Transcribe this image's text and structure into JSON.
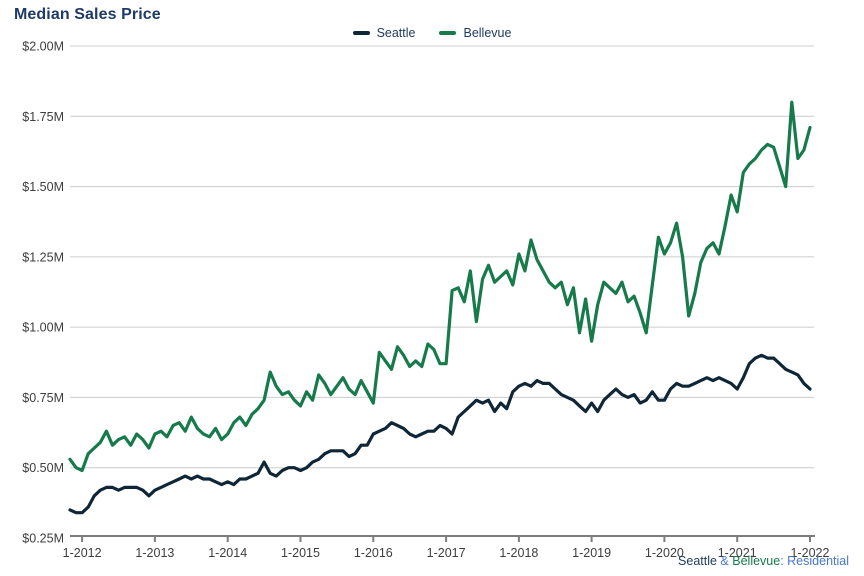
{
  "title": "Median Sales Price",
  "footer": {
    "parts": [
      {
        "text": "Seattle",
        "color": "#1e3a5f"
      },
      {
        "text": " & ",
        "color": "#4777c8"
      },
      {
        "text": "Bellevue",
        "color": "#177a4b"
      },
      {
        "text": ": ",
        "color": "#4777c8"
      },
      {
        "text": "Residential",
        "color": "#4777c8"
      }
    ]
  },
  "chart_data": {
    "type": "line",
    "title": "Median Sales Price",
    "unit": "$M",
    "x_interval": "monthly",
    "x_start": "11-2011",
    "x_end": "1-2022",
    "grid": "horizontal",
    "legend_position": "top-center",
    "ylim": [
      0.25,
      2.0
    ],
    "y_ticks": [
      {
        "label": "$2.00M",
        "value": 2.0
      },
      {
        "label": "$1.75M",
        "value": 1.75
      },
      {
        "label": "$1.50M",
        "value": 1.5
      },
      {
        "label": "$1.25M",
        "value": 1.25
      },
      {
        "label": "$1.00M",
        "value": 1.0
      },
      {
        "label": "$0.75M",
        "value": 0.75
      },
      {
        "label": "$0.50M",
        "value": 0.5
      },
      {
        "label": "$0.25M",
        "value": 0.25
      }
    ],
    "x_ticks": [
      {
        "label": "1-2012",
        "index": 2
      },
      {
        "label": "1-2013",
        "index": 14
      },
      {
        "label": "1-2014",
        "index": 26
      },
      {
        "label": "1-2015",
        "index": 38
      },
      {
        "label": "1-2016",
        "index": 50
      },
      {
        "label": "1-2017",
        "index": 62
      },
      {
        "label": "1-2018",
        "index": 74
      },
      {
        "label": "1-2019",
        "index": 86
      },
      {
        "label": "1-2020",
        "index": 98
      },
      {
        "label": "1-2021",
        "index": 110
      },
      {
        "label": "1-2022",
        "index": 122
      }
    ],
    "series": [
      {
        "name": "Seattle",
        "color": "#0f2637",
        "values": [
          0.35,
          0.34,
          0.34,
          0.36,
          0.4,
          0.42,
          0.43,
          0.43,
          0.42,
          0.43,
          0.43,
          0.43,
          0.42,
          0.4,
          0.42,
          0.43,
          0.44,
          0.45,
          0.46,
          0.47,
          0.46,
          0.47,
          0.46,
          0.46,
          0.45,
          0.44,
          0.45,
          0.44,
          0.46,
          0.46,
          0.47,
          0.48,
          0.52,
          0.48,
          0.47,
          0.49,
          0.5,
          0.5,
          0.49,
          0.5,
          0.52,
          0.53,
          0.55,
          0.56,
          0.56,
          0.56,
          0.54,
          0.55,
          0.58,
          0.58,
          0.62,
          0.63,
          0.64,
          0.66,
          0.65,
          0.64,
          0.62,
          0.61,
          0.62,
          0.63,
          0.63,
          0.65,
          0.64,
          0.62,
          0.68,
          0.7,
          0.72,
          0.74,
          0.73,
          0.74,
          0.7,
          0.73,
          0.71,
          0.77,
          0.79,
          0.8,
          0.79,
          0.81,
          0.8,
          0.8,
          0.78,
          0.76,
          0.75,
          0.74,
          0.72,
          0.7,
          0.73,
          0.7,
          0.74,
          0.76,
          0.78,
          0.76,
          0.75,
          0.76,
          0.73,
          0.74,
          0.77,
          0.74,
          0.74,
          0.78,
          0.8,
          0.79,
          0.79,
          0.8,
          0.81,
          0.82,
          0.81,
          0.82,
          0.81,
          0.8,
          0.78,
          0.82,
          0.87,
          0.89,
          0.9,
          0.89,
          0.89,
          0.87,
          0.85,
          0.84,
          0.83,
          0.8,
          0.78
        ]
      },
      {
        "name": "Bellevue",
        "color": "#177a4b",
        "values": [
          0.53,
          0.5,
          0.49,
          0.55,
          0.57,
          0.59,
          0.63,
          0.58,
          0.6,
          0.61,
          0.58,
          0.62,
          0.6,
          0.57,
          0.62,
          0.63,
          0.61,
          0.65,
          0.66,
          0.63,
          0.68,
          0.64,
          0.62,
          0.61,
          0.64,
          0.6,
          0.62,
          0.66,
          0.68,
          0.65,
          0.69,
          0.71,
          0.74,
          0.84,
          0.79,
          0.76,
          0.77,
          0.74,
          0.72,
          0.77,
          0.74,
          0.83,
          0.8,
          0.76,
          0.79,
          0.82,
          0.78,
          0.76,
          0.81,
          0.77,
          0.73,
          0.91,
          0.88,
          0.85,
          0.93,
          0.9,
          0.86,
          0.88,
          0.86,
          0.94,
          0.92,
          0.87,
          0.87,
          1.13,
          1.14,
          1.09,
          1.2,
          1.02,
          1.17,
          1.22,
          1.16,
          1.18,
          1.2,
          1.15,
          1.26,
          1.2,
          1.31,
          1.24,
          1.2,
          1.16,
          1.14,
          1.16,
          1.08,
          1.14,
          0.98,
          1.1,
          0.95,
          1.08,
          1.16,
          1.14,
          1.12,
          1.16,
          1.09,
          1.11,
          1.05,
          0.98,
          1.15,
          1.32,
          1.26,
          1.3,
          1.37,
          1.25,
          1.04,
          1.12,
          1.23,
          1.28,
          1.3,
          1.26,
          1.36,
          1.47,
          1.41,
          1.55,
          1.58,
          1.6,
          1.63,
          1.65,
          1.64,
          1.57,
          1.5,
          1.8,
          1.6,
          1.63,
          1.71
        ]
      }
    ],
    "style": {
      "gridline_color": "#cccccc",
      "axis_color": "#7d7d7d",
      "tick_label_color": "#3d3d3d",
      "line_width": 3.2
    }
  }
}
